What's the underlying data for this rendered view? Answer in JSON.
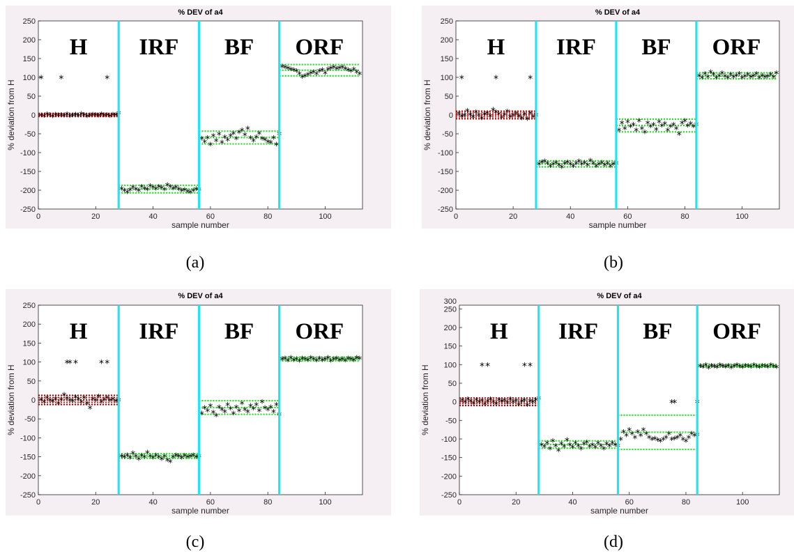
{
  "colors": {
    "figure_bg": "#f5eef3",
    "axes_bg": "#ffffff",
    "divider": "#22e5f2",
    "healthy_band": "#cc0000",
    "fault_band": "#22dd22",
    "points": "#000000"
  },
  "chart_data": [
    {
      "type": "scatter",
      "caption": "(a)",
      "title": "% DEV of a4",
      "xlabel": "sample number",
      "ylabel": "% deviation from H",
      "xlim": [
        0,
        113
      ],
      "ylim": [
        -250,
        250
      ],
      "xticks": [
        0,
        20,
        40,
        60,
        80,
        100
      ],
      "yticks": [
        -250,
        -200,
        -150,
        -100,
        -50,
        0,
        50,
        100,
        150,
        200,
        250
      ],
      "dividers": [
        28,
        56,
        84
      ],
      "regions": [
        {
          "label": "H",
          "x": [
            0,
            28
          ],
          "center": 0,
          "half_width": 4,
          "band": "healthy",
          "outliers": [
            [
              1,
              100
            ],
            [
              8,
              100
            ],
            [
              24,
              100
            ]
          ]
        },
        {
          "label": "IRF",
          "x": [
            28,
            56
          ],
          "center": -197,
          "half_width": 10,
          "band": "fault"
        },
        {
          "label": "BF",
          "x": [
            56,
            84
          ],
          "center": -60,
          "half_width": 17,
          "band": "fault"
        },
        {
          "label": "ORF",
          "x": [
            84,
            112
          ],
          "center": 119,
          "half_width": 15,
          "band": "fault"
        }
      ],
      "series": [
        {
          "region": "H",
          "x_start": 1,
          "y": [
            0,
            -2,
            3,
            1,
            -3,
            2,
            0,
            1,
            -1,
            3,
            -2,
            0,
            2,
            -1,
            4,
            1,
            -3,
            0,
            2,
            1,
            -1,
            3,
            0,
            1,
            -2,
            2,
            1,
            6
          ]
        },
        {
          "region": "IRF",
          "x_start": 29,
          "y": [
            -195,
            -200,
            -205,
            -198,
            -192,
            -196,
            -200,
            -190,
            -194,
            -197,
            -188,
            -192,
            -195,
            -190,
            -193,
            -197,
            -185,
            -190,
            -194,
            -192,
            -196,
            -200,
            -198,
            -203,
            -205,
            -200,
            -196,
            -197
          ]
        },
        {
          "region": "BF",
          "x_start": 57,
          "y": [
            -62,
            -70,
            -60,
            -78,
            -55,
            -68,
            -50,
            -72,
            -58,
            -66,
            -55,
            -48,
            -62,
            -45,
            -40,
            -52,
            -35,
            -60,
            -68,
            -58,
            -48,
            -62,
            -65,
            -70,
            -72,
            -60,
            -78,
            -50
          ]
        },
        {
          "region": "ORF",
          "x_start": 85,
          "y": [
            130,
            128,
            125,
            122,
            120,
            118,
            110,
            102,
            105,
            108,
            112,
            115,
            110,
            118,
            120,
            112,
            122,
            125,
            128,
            124,
            126,
            128,
            124,
            120,
            118,
            122,
            115,
            110
          ]
        }
      ]
    },
    {
      "type": "scatter",
      "caption": "(b)",
      "title": "% DEV of a4",
      "xlabel": "sample number",
      "ylabel": "% deviation from H",
      "xlim": [
        0,
        113
      ],
      "ylim": [
        -250,
        250
      ],
      "xticks": [
        0,
        20,
        40,
        60,
        80,
        100
      ],
      "yticks": [
        -250,
        -200,
        -150,
        -100,
        -50,
        0,
        50,
        100,
        150,
        200,
        250
      ],
      "dividers": [
        28,
        56,
        84
      ],
      "regions": [
        {
          "label": "H",
          "x": [
            0,
            28
          ],
          "center": 0,
          "half_width": 10,
          "band": "healthy",
          "outliers": [
            [
              2,
              100
            ],
            [
              14,
              100
            ],
            [
              26,
              100
            ]
          ]
        },
        {
          "label": "IRF",
          "x": [
            28,
            56
          ],
          "center": -130,
          "half_width": 8,
          "band": "fault"
        },
        {
          "label": "BF",
          "x": [
            56,
            84
          ],
          "center": -28,
          "half_width": 17,
          "band": "fault"
        },
        {
          "label": "ORF",
          "x": [
            84,
            112
          ],
          "center": 104,
          "half_width": 8,
          "band": "fault"
        }
      ],
      "series": [
        {
          "region": "H",
          "x_start": 1,
          "y": [
            5,
            -3,
            0,
            12,
            2,
            -5,
            8,
            0,
            -8,
            3,
            6,
            -2,
            15,
            8,
            4,
            -6,
            2,
            10,
            -4,
            0,
            5,
            -2,
            -8,
            3,
            -10,
            6,
            -4,
            0
          ]
        },
        {
          "region": "IRF",
          "x_start": 29,
          "y": [
            -130,
            -125,
            -122,
            -128,
            -135,
            -130,
            -126,
            -132,
            -138,
            -128,
            -125,
            -130,
            -135,
            -128,
            -122,
            -130,
            -126,
            -132,
            -120,
            -128,
            -135,
            -130,
            -126,
            -132,
            -128,
            -135,
            -130,
            -128
          ]
        },
        {
          "region": "BF",
          "x_start": 57,
          "y": [
            -40,
            -20,
            -35,
            -18,
            -30,
            -25,
            -40,
            -15,
            -35,
            -45,
            -20,
            -30,
            -25,
            -38,
            -18,
            -28,
            -22,
            -40,
            -30,
            -25,
            -35,
            -50,
            -20,
            -15,
            -28,
            -22,
            -30,
            -25
          ]
        },
        {
          "region": "ORF",
          "x_start": 85,
          "y": [
            105,
            100,
            110,
            102,
            115,
            108,
            100,
            105,
            112,
            104,
            100,
            108,
            102,
            106,
            110,
            100,
            104,
            108,
            102,
            105,
            110,
            100,
            106,
            102,
            104,
            108,
            102,
            112
          ]
        }
      ]
    },
    {
      "type": "scatter",
      "caption": "(c)",
      "title": "% DEV of a4",
      "xlabel": "sample number",
      "ylabel": "% deviation from H",
      "xlim": [
        0,
        113
      ],
      "ylim": [
        -250,
        250
      ],
      "xticks": [
        0,
        20,
        40,
        60,
        80,
        100
      ],
      "yticks": [
        -250,
        -200,
        -150,
        -100,
        -50,
        0,
        50,
        100,
        150,
        200,
        250
      ],
      "dividers": [
        28,
        56,
        84
      ],
      "regions": [
        {
          "label": "H",
          "x": [
            0,
            28
          ],
          "center": 0,
          "half_width": 12,
          "band": "healthy",
          "outliers": [
            [
              10,
              100
            ],
            [
              11,
              100
            ],
            [
              13,
              100
            ],
            [
              22,
              100
            ],
            [
              24,
              100
            ]
          ]
        },
        {
          "label": "IRF",
          "x": [
            28,
            56
          ],
          "center": -148,
          "half_width": 6,
          "band": "fault"
        },
        {
          "label": "BF",
          "x": [
            56,
            84
          ],
          "center": -20,
          "half_width": 18,
          "band": "fault"
        },
        {
          "label": "ORF",
          "x": [
            84,
            112
          ],
          "center": 108,
          "half_width": 5,
          "band": "fault"
        }
      ],
      "series": [
        {
          "region": "H",
          "x_start": 1,
          "y": [
            2,
            -5,
            6,
            0,
            -3,
            4,
            -8,
            2,
            15,
            5,
            0,
            -2,
            8,
            3,
            -5,
            6,
            -8,
            -20,
            4,
            0,
            10,
            -4,
            2,
            6,
            0,
            3,
            -2,
            0
          ]
        },
        {
          "region": "IRF",
          "x_start": 29,
          "y": [
            -148,
            -150,
            -145,
            -152,
            -140,
            -148,
            -155,
            -146,
            -150,
            -138,
            -148,
            -152,
            -145,
            -150,
            -155,
            -148,
            -158,
            -162,
            -150,
            -145,
            -148,
            -152,
            -146,
            -150,
            -148,
            -145,
            -150,
            -148
          ]
        },
        {
          "region": "BF",
          "x_start": 57,
          "y": [
            -35,
            -20,
            -28,
            -15,
            -32,
            -40,
            -18,
            -25,
            -30,
            -12,
            -22,
            -35,
            -18,
            -28,
            -8,
            -25,
            -30,
            -15,
            -22,
            -12,
            -28,
            -5,
            -20,
            -25,
            -18,
            -30,
            -12,
            -38
          ]
        },
        {
          "region": "ORF",
          "x_start": 85,
          "y": [
            108,
            110,
            105,
            112,
            106,
            108,
            104,
            110,
            108,
            106,
            112,
            108,
            105,
            110,
            106,
            108,
            112,
            104,
            108,
            110,
            106,
            108,
            105,
            110,
            108,
            106,
            112,
            110
          ]
        }
      ]
    },
    {
      "type": "scatter",
      "caption": "(d)",
      "title": "% DEV of a4",
      "xlabel": "sample number",
      "ylabel": "% deviation from H",
      "xlim": [
        0,
        113
      ],
      "ylim": [
        -250,
        250
      ],
      "xticks": [
        0,
        20,
        40,
        60,
        80,
        100
      ],
      "yticks": [
        -250,
        -200,
        -150,
        -100,
        -50,
        0,
        50,
        100,
        150,
        200,
        250,
        300
      ],
      "dividers": [
        28,
        56,
        84
      ],
      "regions": [
        {
          "label": "H",
          "x": [
            0,
            28
          ],
          "center": 0,
          "half_width": 10,
          "band": "healthy",
          "outliers": [
            [
              8,
              100
            ],
            [
              10,
              100
            ],
            [
              23,
              100
            ],
            [
              25,
              100
            ]
          ]
        },
        {
          "label": "IRF",
          "x": [
            28,
            56
          ],
          "center": -115,
          "half_width": 10,
          "band": "fault"
        },
        {
          "label": "BF",
          "x": [
            56,
            84
          ],
          "center": -82,
          "half_width": 46,
          "band": "fault",
          "outliers": [
            [
              75,
              0
            ],
            [
              76,
              0
            ],
            [
              84,
              0
            ]
          ]
        },
        {
          "label": "ORF",
          "x": [
            84,
            112
          ],
          "center": 97,
          "half_width": 4,
          "band": "fault"
        }
      ],
      "series": [
        {
          "region": "H",
          "x_start": 1,
          "y": [
            5,
            0,
            8,
            2,
            -3,
            6,
            0,
            4,
            -5,
            2,
            8,
            0,
            -4,
            6,
            2,
            5,
            -2,
            8,
            0,
            4,
            -6,
            2,
            5,
            -8,
            3,
            0,
            6,
            10
          ]
        },
        {
          "region": "IRF",
          "x_start": 29,
          "y": [
            -115,
            -120,
            -110,
            -125,
            -105,
            -118,
            -130,
            -112,
            -120,
            -102,
            -115,
            -122,
            -110,
            -118,
            -125,
            -112,
            -108,
            -120,
            -115,
            -122,
            -110,
            -118,
            -125,
            -112,
            -118,
            -110,
            -115,
            -118
          ]
        },
        {
          "region": "BF",
          "x_start": 57,
          "y": [
            -100,
            -80,
            -90,
            -75,
            -85,
            -95,
            -80,
            -90,
            -75,
            -85,
            -95,
            -100,
            -98,
            -102,
            -105,
            -100,
            -95,
            -85,
            -100,
            -98,
            -95,
            -90,
            -100,
            -105,
            -95,
            -85,
            -90,
            -88
          ]
        },
        {
          "region": "ORF",
          "x_start": 85,
          "y": [
            97,
            95,
            100,
            92,
            98,
            96,
            94,
            100,
            97,
            95,
            98,
            93,
            97,
            100,
            96,
            94,
            98,
            97,
            95,
            100,
            96,
            94,
            98,
            97,
            95,
            100,
            96,
            94
          ]
        }
      ]
    }
  ]
}
